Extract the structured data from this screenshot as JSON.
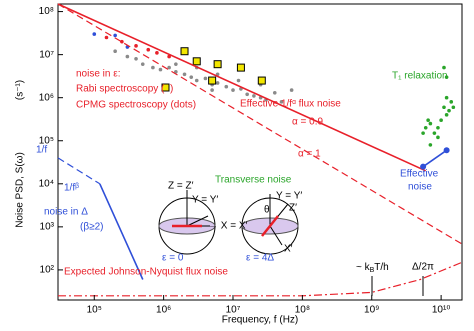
{
  "chart_data": {
    "type": "line",
    "log_x": true,
    "log_y": true,
    "x_label": "Frequency, f (Hz)",
    "y_label": "Noise PSD,  S(ω)",
    "y_unit": "(s⁻¹)",
    "xlim": [
      30000,
      20000000000
    ],
    "ylim": [
      20,
      150000000
    ],
    "xticks": [
      {
        "value": 100000,
        "label": "10⁵"
      },
      {
        "value": 1000000,
        "label": "10⁶"
      },
      {
        "value": 10000000,
        "label": "10⁷"
      },
      {
        "value": 100000000,
        "label": "10⁸"
      },
      {
        "value": 1000000000,
        "label": "10⁹"
      },
      {
        "value": 10000000000,
        "label": "10¹⁰"
      }
    ],
    "yticks": [
      {
        "value": 100,
        "label": "10²"
      },
      {
        "value": 1000,
        "label": "10³"
      },
      {
        "value": 10000,
        "label": "10⁴"
      },
      {
        "value": 100000,
        "label": "10⁵"
      },
      {
        "value": 1000000,
        "label": "10⁶"
      },
      {
        "value": 10000000,
        "label": "10⁷"
      },
      {
        "value": 100000000,
        "label": "10⁸"
      }
    ],
    "series": [
      {
        "kind": "points",
        "color": "#8a8a8a",
        "x": [
          200000,
          300000,
          400000,
          500000,
          700000,
          900000,
          1200000,
          1500000,
          2000000,
          2500000,
          3000000,
          4000000,
          5000000,
          6000000,
          8000000,
          10000000,
          13000000,
          16000000,
          20000000,
          25000000,
          30000000,
          40000000,
          50000000,
          70000000,
          1500000,
          3000000,
          6000000,
          12000000,
          25000000,
          5000000
        ],
        "y": [
          12000000,
          9000000,
          8000000,
          6000000,
          5000000,
          4500000,
          5000000,
          4000000,
          3500000,
          3000000,
          2500000,
          2800000,
          2000000,
          2200000,
          1800000,
          1500000,
          1600000,
          1200000,
          1100000,
          1000000,
          900000,
          1300000,
          800000,
          1500000,
          6000000,
          5000000,
          3500000,
          2500000,
          2000000,
          1500000
        ]
      },
      {
        "kind": "points",
        "color": "#e8202a",
        "x": [
          150000,
          250000,
          400000,
          600000,
          800000,
          1200000
        ],
        "y": [
          25000000,
          20000000,
          16000000,
          13000000,
          11000000,
          9000000
        ]
      },
      {
        "kind": "points",
        "color": "#2f4fd8",
        "x": [
          100000,
          200000,
          300000
        ],
        "y": [
          30000000,
          28000000,
          15000000
        ]
      },
      {
        "kind": "squares",
        "color": "#f2e600",
        "x": [
          2000000,
          3000000,
          6000000,
          13000000,
          26000000,
          5000000
        ],
        "y": [
          12000000,
          7000000,
          6000000,
          5000000,
          2500000,
          2500000
        ]
      },
      {
        "kind": "points",
        "color": "#2aa52a",
        "x": [
          11000000000,
          12000000000,
          5500000000,
          6000000000,
          6500000000,
          7000000000,
          8000000000,
          9000000000,
          10000000000,
          11000000000,
          12000000000,
          13000000000,
          14000000000,
          15000000000,
          7000000000,
          9000000000,
          12000000000
        ],
        "y": [
          5000000,
          3000000,
          150000,
          200000,
          300000,
          250000,
          150000,
          200000,
          300000,
          600000,
          1000000,
          500000,
          800000,
          600000,
          80000,
          120000,
          400000
        ]
      },
      {
        "kind": "line",
        "dash": "solid",
        "color": "#e8202a",
        "x": [
          30000,
          6000000000
        ],
        "y": [
          150000000,
          20000
        ]
      },
      {
        "kind": "line",
        "dash": "dashed",
        "color": "#e8202a",
        "x": [
          30000,
          20000000000
        ],
        "y": [
          150000000,
          400
        ]
      },
      {
        "kind": "line",
        "dash": "dashed",
        "color": "#2f4fd8",
        "x": [
          30000,
          120000
        ],
        "y": [
          40000,
          10000
        ]
      },
      {
        "kind": "line",
        "dash": "solid",
        "color": "#2f4fd8",
        "x": [
          120000,
          500000
        ],
        "y": [
          10000,
          60
        ]
      },
      {
        "kind": "line",
        "dash": "dashdot",
        "color": "#e8202a",
        "x": [
          30000,
          100000000,
          1000000000,
          5000000000,
          20000000000
        ],
        "y": [
          25,
          25,
          30,
          60,
          150
        ]
      },
      {
        "kind": "linepoints",
        "dash": "solid",
        "color": "#2f4fd8",
        "x": [
          5500000000,
          12000000000
        ],
        "y": [
          25000,
          60000
        ]
      }
    ],
    "annotations": {
      "noise_eps": "noise in ε:",
      "rabi": "Rabi spectroscopy (",
      "rabi_end": ")",
      "cpmg": "CPMG spectroscopy (dots)",
      "eff_flux": "Effective 1/fᵅ flux noise",
      "alpha09": "α = 0.9",
      "alpha1": "α = 1",
      "t1": "T₁ relaxation",
      "eff1": "Effective",
      "eff2": "noise",
      "transverse": "Transverse noise",
      "one_f": "1/f",
      "one_fb": "1/fᵝ",
      "noise_delta": "noise in Δ",
      "beta": "(β≥2)",
      "jn": "Expected Johnson-Nyquist flux noise",
      "eps0": "ε = 0",
      "eps4": "ε = 4Δ",
      "kbt_a": "~ k",
      "kbt_b": "B",
      "kbt_c": "T/h",
      "delta2pi": "Δ/2π"
    },
    "diagram_labels": {
      "z_left": "Z = Z′",
      "y_left": "Y = Y′",
      "x_left": "→ X = X′",
      "z_right": "Z′",
      "y_right": "Y = Y′",
      "x_right": "X′",
      "theta": "θ"
    }
  }
}
